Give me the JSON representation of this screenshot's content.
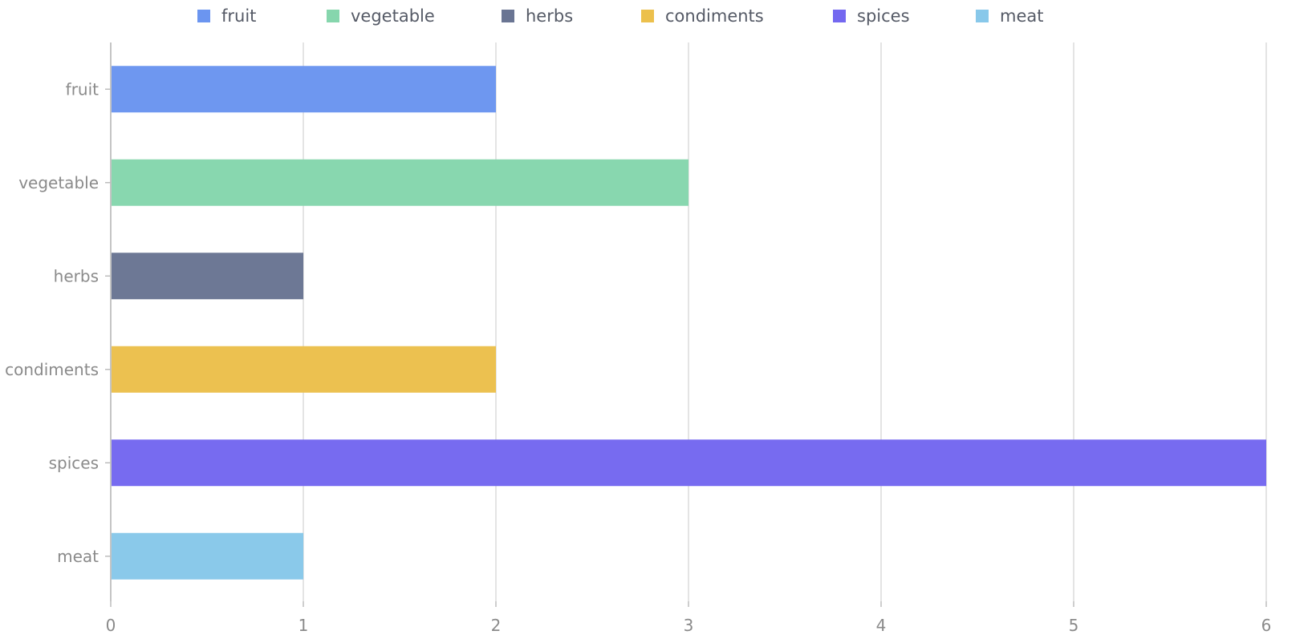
{
  "chart_data": {
    "type": "bar",
    "orientation": "horizontal",
    "categories": [
      "fruit",
      "vegetable",
      "herbs",
      "condiments",
      "spices",
      "meat"
    ],
    "values": [
      2,
      3,
      1,
      2,
      6,
      1
    ],
    "colors": [
      "#6b95f0",
      "#86d6ad",
      "#6a7593",
      "#ecc04c",
      "#7468f0",
      "#88c8ea"
    ],
    "legend": {
      "position": "top",
      "entries": [
        "fruit",
        "vegetable",
        "herbs",
        "condiments",
        "spices",
        "meat"
      ]
    },
    "xlim": [
      0,
      6
    ],
    "xticks": [
      "0",
      "1",
      "2",
      "3",
      "4",
      "5",
      "6"
    ],
    "grid": true,
    "title": "",
    "xlabel": "",
    "ylabel": ""
  }
}
